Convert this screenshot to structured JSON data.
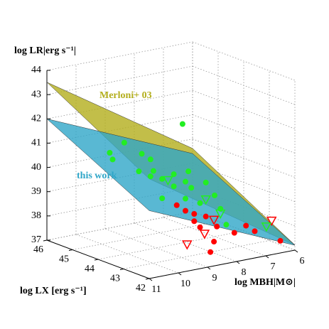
{
  "chart_data": {
    "type": "scatter3d",
    "xlabel": "log LX [erg s⁻¹]",
    "ylabel": "log MBH|M⊙|",
    "zlabel": "log LR|erg s⁻¹|",
    "xlim": [
      42,
      46
    ],
    "xticks": [
      42,
      43,
      44,
      45,
      46
    ],
    "ylim": [
      6,
      11
    ],
    "yticks": [
      6,
      7,
      8,
      9,
      10,
      11
    ],
    "zlim": [
      37,
      44
    ],
    "zticks": [
      37,
      38,
      39,
      40,
      41,
      42,
      43,
      44
    ],
    "grid": true,
    "surfaces": [
      {
        "name": "Merloni+ 03",
        "color": "#b3ae1c",
        "x": [
          42,
          46
        ],
        "y": [
          6,
          11
        ],
        "z": [
          [
            37.21,
            41.11
          ],
          [
            39.61,
            43.51
          ]
        ]
      },
      {
        "name": "this work",
        "color": "#2fa6c8",
        "x": [
          42,
          46
        ],
        "y": [
          6,
          11
        ],
        "z": [
          [
            37.2,
            39.8
          ],
          [
            39.4,
            42.0
          ]
        ]
      }
    ],
    "series": [
      {
        "color": "#ff0000",
        "marker": "circle",
        "x": [
          44,
          44,
          44,
          44,
          43,
          42,
          43,
          43,
          43,
          42,
          44,
          43,
          44
        ],
        "y": [
          8.0,
          7.7,
          7.3,
          7.5,
          7.9,
          8.9,
          7.2,
          6.8,
          6.5,
          6.5,
          8.3,
          7.8,
          7.7
        ],
        "z": [
          38.3,
          38.1,
          37.9,
          37.5,
          37.4,
          37.6,
          37.6,
          37.8,
          37.5,
          37.5,
          38.6,
          38.0,
          37.8
        ]
      },
      {
        "color": "#ff0000",
        "marker": "triangle",
        "x": [
          42,
          42,
          43,
          42
        ],
        "y": [
          9.7,
          9.1,
          7.9,
          6.8
        ],
        "z": [
          38.1,
          38.4,
          38.3,
          38.4
        ]
      },
      {
        "color": "#22ee22",
        "marker": "circle",
        "x": [
          44,
          44,
          44,
          44,
          44,
          44,
          44,
          44,
          44,
          44,
          44,
          44,
          44,
          44,
          44,
          44,
          44,
          44,
          44,
          44,
          44,
          44
        ],
        "y": [
          8.1,
          10.6,
          10.5,
          10.1,
          9.5,
          9.2,
          9.1,
          8.8,
          8.4,
          8.0,
          7.8,
          7.3,
          8.4,
          7.0,
          8.0,
          8.8,
          7.5,
          6.6,
          6.8,
          9.6,
          7.9,
          9.2
        ],
        "z": [
          41.9,
          41.3,
          41.0,
          41.6,
          41.0,
          40.7,
          40.2,
          39.8,
          39.9,
          39.5,
          39.2,
          39.3,
          39.4,
          38.7,
          38.8,
          39.0,
          38.5,
          37.4,
          38.1,
          40.3,
          39.9,
          40.0
        ]
      },
      {
        "color": "#22ee22",
        "marker": "triangle",
        "x": [
          44,
          44,
          43,
          44
        ],
        "y": [
          7.3,
          6.8,
          6.1,
          8.6
        ],
        "z": [
          38.6,
          37.9,
          37.6,
          39.7
        ]
      }
    ]
  }
}
